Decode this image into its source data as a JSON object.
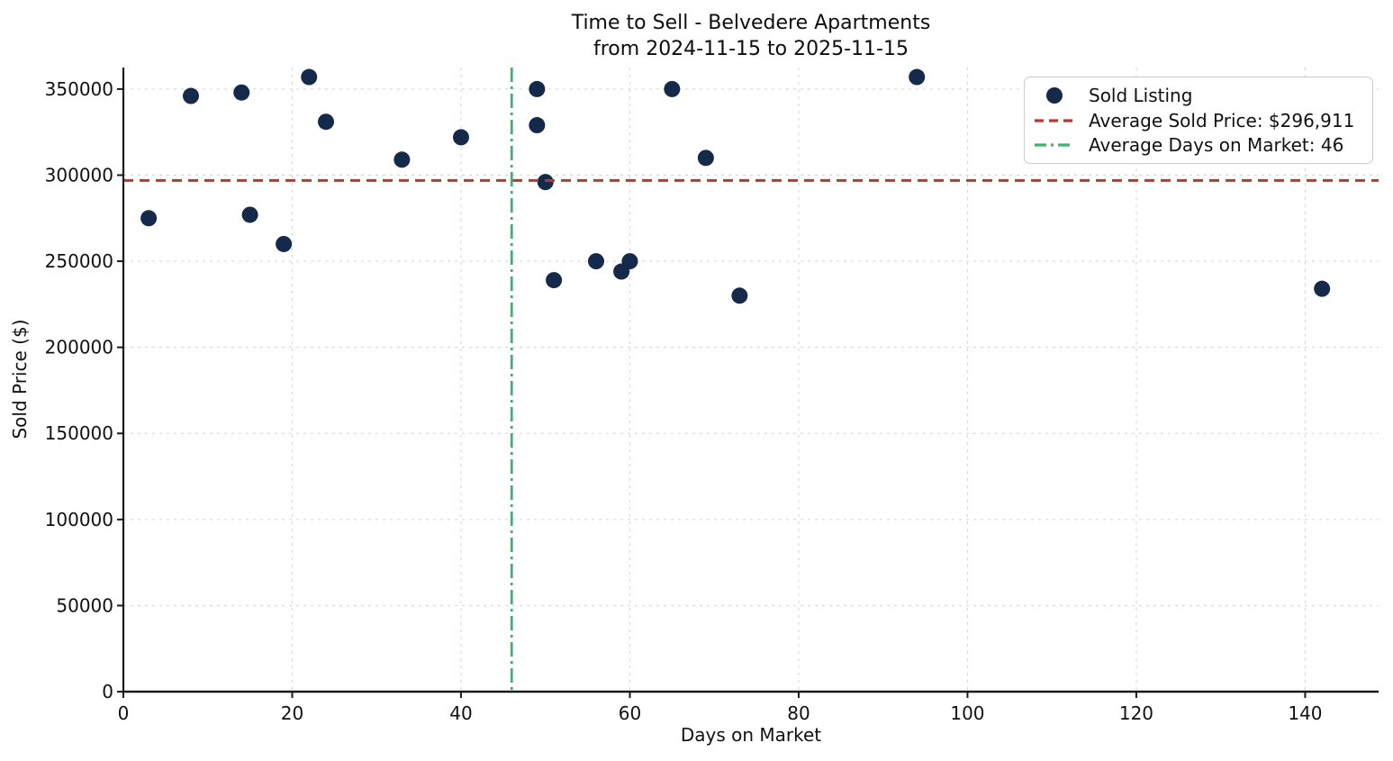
{
  "title": {
    "line1": "Time to Sell - Belvedere Apartments",
    "line2": "from 2024-11-15 to 2025-11-15"
  },
  "chart_data": {
    "type": "scatter",
    "title": "Time to Sell - Belvedere Apartments",
    "subtitle": "from 2024-11-15 to 2025-11-15",
    "xlabel": "Days on Market",
    "ylabel": "Sold Price ($)",
    "xlim": [
      0,
      148.7
    ],
    "ylim": [
      0,
      362500
    ],
    "x_ticks": [
      0,
      20,
      40,
      60,
      80,
      100,
      120,
      140
    ],
    "y_ticks": [
      0,
      50000,
      100000,
      150000,
      200000,
      250000,
      300000,
      350000
    ],
    "grid": true,
    "legend_position": "upper right",
    "series_name": "Sold Listing",
    "points": [
      {
        "days": 3,
        "price": 275000
      },
      {
        "days": 8,
        "price": 346000
      },
      {
        "days": 14,
        "price": 348000
      },
      {
        "days": 15,
        "price": 277000
      },
      {
        "days": 19,
        "price": 260000
      },
      {
        "days": 22,
        "price": 357000
      },
      {
        "days": 24,
        "price": 331000
      },
      {
        "days": 33,
        "price": 309000
      },
      {
        "days": 40,
        "price": 322000
      },
      {
        "days": 49,
        "price": 350000
      },
      {
        "days": 49,
        "price": 329000
      },
      {
        "days": 50,
        "price": 296000
      },
      {
        "days": 51,
        "price": 239000
      },
      {
        "days": 56,
        "price": 250000
      },
      {
        "days": 59,
        "price": 244000
      },
      {
        "days": 60,
        "price": 250000
      },
      {
        "days": 65,
        "price": 350000
      },
      {
        "days": 69,
        "price": 310000
      },
      {
        "days": 73,
        "price": 230000
      },
      {
        "days": 94,
        "price": 357000
      },
      {
        "days": 142,
        "price": 234000
      }
    ],
    "average_sold_price": 296911,
    "average_days_on_market": 46,
    "colors": {
      "point": "#15294a",
      "avg_price_line": "#b33a2e",
      "avg_days_line": "#3cb371",
      "grid": "#ccd5db",
      "axis": "#1a1a1a",
      "text": "#111111",
      "background": "#ffffff"
    }
  },
  "legend": {
    "items": [
      {
        "label": "Sold Listing",
        "marker": "dot"
      },
      {
        "label": "Average Sold Price: $296,911",
        "marker": "red-dashed-line"
      },
      {
        "label": "Average Days on Market: 46",
        "marker": "green-dashdot-line"
      }
    ]
  }
}
